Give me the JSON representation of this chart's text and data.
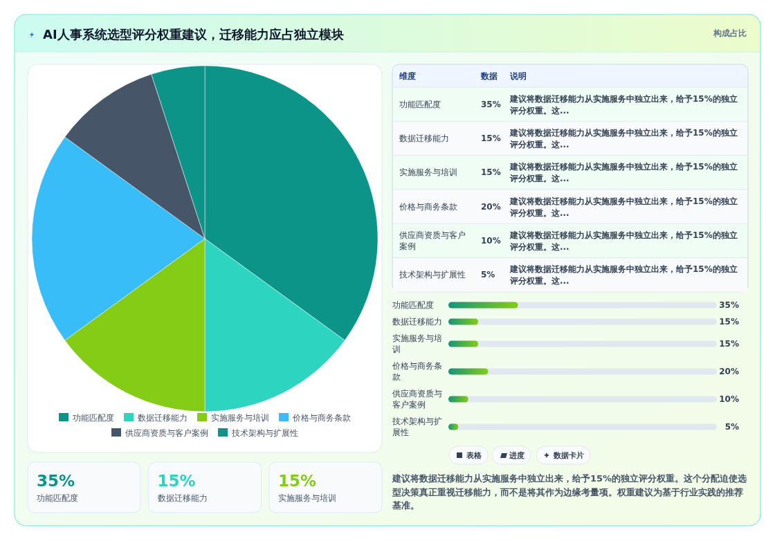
{
  "chart_data": [
    {
      "type": "other",
      "title": "AI人事系统选型评分权重建议，迁移能力应占独立模块",
      "subtitle": "构成占比"
    },
    {
      "type": "pie",
      "categories": [
        "功能匹配度",
        "数据迁移能力",
        "实施服务与培训",
        "价格与商务条款",
        "供应商资质与客户案例",
        "技术架构与扩展性"
      ],
      "values": [
        35,
        15,
        15,
        20,
        10,
        5
      ],
      "colors": [
        "#0d9488",
        "#2dd4bf",
        "#84cc16",
        "#38bdf8",
        "#475569",
        "#0d9488"
      ],
      "legend": "bottom"
    },
    {
      "type": "other",
      "categories": [
        "功能匹配度",
        "数据迁移能力",
        "实施服务与培训",
        "价格与商务条款",
        "供应商资质与客户案例",
        "技术架构与扩展性"
      ],
      "value_labels": [
        "35%",
        "15%",
        "15%",
        "20%",
        "10%",
        "5%"
      ],
      "annotations": [
        "维度",
        "数据",
        "说明",
        "建议将数据迁移能力从实施服务中独立出来，给予15%的独立评分权重。这...",
        "建议将数据迁移能力从实施服务中独立出来，给予15%的独立评分权重。这...",
        "建议将数据迁移能力从实施服务中独立出来，给予15%的独立评分权重。这...",
        "建议将数据迁移能力从实施服务中独立出来，给予15%的独立评分权重。这...",
        "建议将数据迁移能力从实施服务中独立出来，给予15%的独立评分权重。这...",
        "建议将数据迁移能力从实施服务中独立出来，给予15%的独立评分权重。这..."
      ]
    },
    {
      "type": "bar",
      "orientation": "horizontal",
      "categories": [
        "功能匹配度",
        "数据迁移能力",
        "实施服务与培训",
        "价格与商务条款",
        "供应商资质与客户案例",
        "技术架构与扩展性"
      ],
      "values": [
        35,
        15,
        15,
        20,
        10,
        5
      ],
      "value_labels": [
        "35%",
        "15%",
        "15%",
        "20%",
        "10%",
        "5%"
      ],
      "color": "#84cc16",
      "xlim": [
        0,
        135
      ],
      "tick_labels": "y"
    },
    {
      "type": "other",
      "categories": [
        "功能匹配度",
        "数据迁移能力",
        "实施服务与培训"
      ],
      "value_labels": [
        "35%",
        "15%",
        "15%"
      ],
      "annotations": [
        "表格",
        "进度",
        "数据卡片",
        "建议将数据迁移能力从实施服务中独立出来，给予15%的独立评分权重。这个分配迫使选型决策真正重视迁移能力，而不是将其作为边缘考量项。权重建议为基于行业实践的推荐基准。"
      ]
    }
  ]
}
